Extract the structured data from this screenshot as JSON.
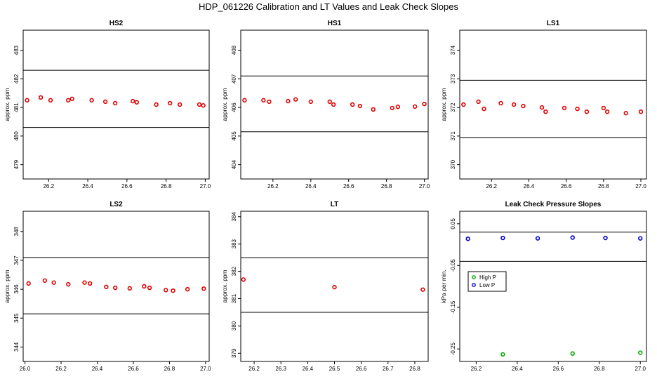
{
  "title": "HDP_061226  Calibration and LT Values and Leak Check Slopes",
  "chart_data": [
    {
      "type": "scatter",
      "title": "HS2",
      "ylabel": "approx. ppm",
      "xlim": [
        26.07,
        27.02
      ],
      "ylim": [
        478.5,
        483.7
      ],
      "xticks": [
        26.2,
        26.4,
        26.6,
        26.8,
        27.0
      ],
      "xtick_labels": [
        "26.2",
        "26.4",
        "26.6",
        "26.8",
        "27.0"
      ],
      "yticks": [
        479,
        480,
        481,
        482,
        483
      ],
      "ytick_labels": [
        "479",
        "480",
        "481",
        "482",
        "483"
      ],
      "hlines": [
        480.3,
        482.3
      ],
      "series": [
        {
          "name": "ppm",
          "color": "#e00000",
          "x": [
            26.09,
            26.16,
            26.21,
            26.3,
            26.32,
            26.42,
            26.49,
            26.54,
            26.63,
            26.65,
            26.75,
            26.82,
            26.87,
            26.97,
            26.99
          ],
          "y": [
            481.25,
            481.35,
            481.25,
            481.25,
            481.3,
            481.25,
            481.2,
            481.15,
            481.22,
            481.18,
            481.1,
            481.15,
            481.1,
            481.1,
            481.07
          ]
        }
      ]
    },
    {
      "type": "scatter",
      "title": "HS1",
      "ylabel": "approx. ppm",
      "xlim": [
        26.03,
        27.02
      ],
      "ylim": [
        403.5,
        408.7
      ],
      "xticks": [
        26.2,
        26.4,
        26.6,
        26.8,
        27.0
      ],
      "xtick_labels": [
        "26.2",
        "26.4",
        "26.6",
        "26.8",
        "27.0"
      ],
      "yticks": [
        404,
        405,
        406,
        407,
        408
      ],
      "ytick_labels": [
        "404",
        "405",
        "406",
        "407",
        "408"
      ],
      "hlines": [
        405.15,
        407.1
      ],
      "series": [
        {
          "name": "ppm",
          "color": "#e00000",
          "x": [
            26.05,
            26.15,
            26.18,
            26.28,
            26.32,
            26.4,
            26.5,
            26.52,
            26.62,
            26.66,
            26.73,
            26.83,
            26.86,
            26.95,
            27.0
          ],
          "y": [
            406.25,
            406.25,
            406.2,
            406.22,
            406.28,
            406.2,
            406.2,
            406.1,
            406.1,
            406.05,
            405.93,
            405.98,
            406.02,
            406.03,
            406.12
          ]
        }
      ]
    },
    {
      "type": "scatter",
      "title": "LS1",
      "ylabel": "approx. ppm",
      "xlim": [
        26.03,
        27.03
      ],
      "ylim": [
        369.5,
        374.7
      ],
      "xticks": [
        26.2,
        26.4,
        26.6,
        26.8,
        27.0
      ],
      "xtick_labels": [
        "26.2",
        "26.4",
        "26.6",
        "26.8",
        "27.0"
      ],
      "yticks": [
        370,
        371,
        372,
        373,
        374
      ],
      "ytick_labels": [
        "370",
        "371",
        "372",
        "373",
        "374"
      ],
      "hlines": [
        370.95,
        372.95
      ],
      "series": [
        {
          "name": "ppm",
          "color": "#e00000",
          "x": [
            26.05,
            26.13,
            26.16,
            26.25,
            26.32,
            26.37,
            26.47,
            26.49,
            26.59,
            26.66,
            26.71,
            26.8,
            26.82,
            26.92,
            27.0
          ],
          "y": [
            372.1,
            372.2,
            371.95,
            372.15,
            372.1,
            372.05,
            372.0,
            371.85,
            371.98,
            371.95,
            371.85,
            371.98,
            371.85,
            371.8,
            371.85
          ]
        }
      ]
    },
    {
      "type": "scatter",
      "title": "LS2",
      "ylabel": "approx. ppm",
      "xlim": [
        25.99,
        27.02
      ],
      "ylim": [
        343.5,
        348.7
      ],
      "xticks": [
        26.0,
        26.2,
        26.4,
        26.6,
        26.8,
        27.0
      ],
      "xtick_labels": [
        "26.0",
        "26.2",
        "26.4",
        "26.6",
        "26.8",
        "27.0"
      ],
      "yticks": [
        344,
        345,
        346,
        347,
        348
      ],
      "ytick_labels": [
        "344",
        "345",
        "346",
        "347",
        "348"
      ],
      "hlines": [
        345.15,
        347.1
      ],
      "series": [
        {
          "name": "ppm",
          "color": "#e00000",
          "x": [
            26.02,
            26.11,
            26.16,
            26.24,
            26.33,
            26.36,
            26.45,
            26.5,
            26.58,
            26.66,
            26.69,
            26.78,
            26.82,
            26.9,
            26.99
          ],
          "y": [
            346.2,
            346.3,
            346.23,
            346.17,
            346.23,
            346.2,
            346.08,
            346.05,
            346.03,
            346.1,
            346.05,
            345.97,
            345.95,
            346.0,
            346.02
          ]
        }
      ]
    },
    {
      "type": "scatter",
      "title": "LT",
      "ylabel": "approx. ppm",
      "xlim": [
        26.15,
        26.85
      ],
      "ylim": [
        378.7,
        384.2
      ],
      "xticks": [
        26.2,
        26.3,
        26.4,
        26.5,
        26.6,
        26.7,
        26.8
      ],
      "xtick_labels": [
        "26.2",
        "26.3",
        "26.4",
        "26.5",
        "26.6",
        "26.7",
        "26.8"
      ],
      "yticks": [
        379,
        380,
        381,
        382,
        383,
        384
      ],
      "ytick_labels": [
        "379",
        "380",
        "381",
        "382",
        "383",
        "384"
      ],
      "hlines": [
        380.5,
        382.5
      ],
      "series": [
        {
          "name": "ppm",
          "color": "#e00000",
          "x": [
            26.16,
            26.5,
            26.83
          ],
          "y": [
            381.7,
            381.42,
            381.33
          ]
        }
      ]
    },
    {
      "type": "scatter",
      "title": "Leak Check Pressure Slopes",
      "ylabel": "kPa per min.",
      "xlim": [
        26.12,
        27.03
      ],
      "ylim": [
        -0.28,
        0.08
      ],
      "xticks": [
        26.2,
        26.4,
        26.6,
        26.8,
        27.0
      ],
      "xtick_labels": [
        "26.2",
        "26.4",
        "26.6",
        "26.8",
        "27.0"
      ],
      "yticks": [
        0.05,
        -0.05,
        -0.15,
        -0.25
      ],
      "ytick_labels": [
        "0.05",
        "-0.05",
        "-0.15",
        "-0.25"
      ],
      "hlines": [
        0.03,
        -0.04
      ],
      "legend": {
        "position": "center-left",
        "entries": [
          "High P",
          "Low P"
        ]
      },
      "series": [
        {
          "name": "High P",
          "color": "#00aa00",
          "x": [
            26.33,
            26.67,
            27.0
          ],
          "y": [
            -0.263,
            -0.261,
            -0.259
          ]
        },
        {
          "name": "Low P",
          "color": "#0000cc",
          "x": [
            26.16,
            26.33,
            26.5,
            26.67,
            26.83,
            27.0
          ],
          "y": [
            0.014,
            0.016,
            0.015,
            0.017,
            0.016,
            0.015
          ]
        }
      ]
    }
  ]
}
